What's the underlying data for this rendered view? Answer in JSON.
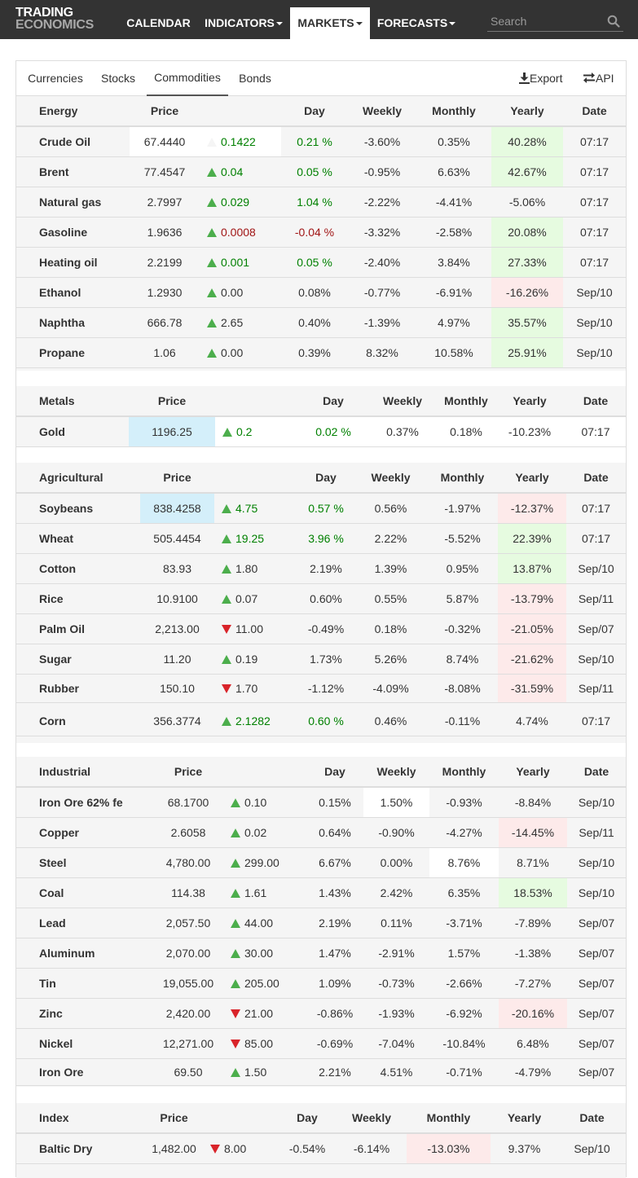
{
  "nav": {
    "logo_line1": "TRADING",
    "logo_line2": "ECONOMICS",
    "items": [
      {
        "label": "CALENDAR",
        "dropdown": false
      },
      {
        "label": "INDICATORS",
        "dropdown": true
      },
      {
        "label": "MARKETS",
        "dropdown": true
      },
      {
        "label": "FORECASTS",
        "dropdown": true
      }
    ],
    "search_placeholder": "Search"
  },
  "tabs": {
    "items": [
      "Currencies",
      "Stocks",
      "Commodities",
      "Bonds"
    ],
    "active": "Commodities",
    "export_label": "Export",
    "api_label": "API"
  },
  "colors": {
    "up": "#4cae4c",
    "down": "#d9242a",
    "pos_text": "#008000",
    "neg_text": "#a01515",
    "green_bg": "#e6fbe0",
    "red_bg": "#fdeaea",
    "highlight_bg": "#d4effa"
  },
  "sections": [
    {
      "name": "Energy",
      "columns": [
        "Price",
        "Day",
        "Weekly",
        "Monthly",
        "Yearly",
        "Date"
      ],
      "rows": [
        {
          "name": "Crude Oil",
          "price": "67.4440",
          "change": "0.1422",
          "dir": "flat",
          "change_color": "pos",
          "day": "0.21 %",
          "day_color": "pos",
          "weekly": "-3.60%",
          "monthly": "0.35%",
          "yearly": "40.28%",
          "date": "07:17"
        },
        {
          "name": "Brent",
          "price": "77.4547",
          "change": "0.04",
          "dir": "up",
          "change_color": "pos",
          "day": "0.05 %",
          "day_color": "pos",
          "weekly": "-0.95%",
          "monthly": "6.63%",
          "yearly": "42.67%",
          "date": "07:17"
        },
        {
          "name": "Natural gas",
          "price": "2.7997",
          "change": "0.029",
          "dir": "up",
          "change_color": "pos",
          "day": "1.04 %",
          "day_color": "pos",
          "weekly": "-2.22%",
          "monthly": "-4.41%",
          "yearly": "-5.06%",
          "date": "07:17"
        },
        {
          "name": "Gasoline",
          "price": "1.9636",
          "change": "0.0008",
          "dir": "up",
          "change_color": "neg",
          "day": "-0.04 %",
          "day_color": "neg",
          "weekly": "-3.32%",
          "monthly": "-2.58%",
          "yearly": "20.08%",
          "date": "07:17"
        },
        {
          "name": "Heating oil",
          "price": "2.2199",
          "change": "0.001",
          "dir": "up",
          "change_color": "pos",
          "day": "0.05 %",
          "day_color": "pos",
          "weekly": "-2.40%",
          "monthly": "3.84%",
          "yearly": "27.33%",
          "date": "07:17"
        },
        {
          "name": "Ethanol",
          "price": "1.2930",
          "change": "0.00",
          "dir": "up",
          "change_color": "",
          "day": "0.08%",
          "day_color": "",
          "weekly": "-0.77%",
          "monthly": "-6.91%",
          "yearly": "-16.26%",
          "date": "Sep/10"
        },
        {
          "name": "Naphtha",
          "price": "666.78",
          "change": "2.65",
          "dir": "up",
          "change_color": "",
          "day": "0.40%",
          "day_color": "",
          "weekly": "-1.39%",
          "monthly": "4.97%",
          "yearly": "35.57%",
          "date": "Sep/10"
        },
        {
          "name": "Propane",
          "price": "1.06",
          "change": "0.00",
          "dir": "up",
          "change_color": "",
          "day": "0.39%",
          "day_color": "",
          "weekly": "8.32%",
          "monthly": "10.58%",
          "yearly": "25.91%",
          "date": "Sep/10"
        }
      ]
    },
    {
      "name": "Metals",
      "columns": [
        "Price",
        "Day",
        "Weekly",
        "Monthly",
        "Yearly",
        "Date"
      ],
      "rows": [
        {
          "name": "Gold",
          "price": "1196.25",
          "change": "0.2",
          "dir": "up",
          "change_color": "pos",
          "day": "0.02 %",
          "day_color": "pos",
          "weekly": "0.37%",
          "monthly": "0.18%",
          "yearly": "-10.23%",
          "date": "07:17"
        }
      ]
    },
    {
      "name": "Agricultural",
      "columns": [
        "Price",
        "Day",
        "Weekly",
        "Monthly",
        "Yearly",
        "Date"
      ],
      "rows": [
        {
          "name": "Soybeans",
          "price": "838.4258",
          "change": "4.75",
          "dir": "up",
          "change_color": "pos",
          "day": "0.57 %",
          "day_color": "pos",
          "weekly": "0.56%",
          "monthly": "-1.97%",
          "yearly": "-12.37%",
          "date": "07:17"
        },
        {
          "name": "Wheat",
          "price": "505.4454",
          "change": "19.25",
          "dir": "up",
          "change_color": "pos",
          "day": "3.96 %",
          "day_color": "pos",
          "weekly": "2.22%",
          "monthly": "-5.52%",
          "yearly": "22.39%",
          "date": "07:17"
        },
        {
          "name": "Cotton",
          "price": "83.93",
          "change": "1.80",
          "dir": "up",
          "change_color": "",
          "day": "2.19%",
          "day_color": "",
          "weekly": "1.39%",
          "monthly": "0.95%",
          "yearly": "13.87%",
          "date": "Sep/10"
        },
        {
          "name": "Rice",
          "price": "10.9100",
          "change": "0.07",
          "dir": "up",
          "change_color": "",
          "day": "0.60%",
          "day_color": "",
          "weekly": "0.55%",
          "monthly": "5.87%",
          "yearly": "-13.79%",
          "date": "Sep/11"
        },
        {
          "name": "Palm Oil",
          "price": "2,213.00",
          "change": "11.00",
          "dir": "down",
          "change_color": "",
          "day": "-0.49%",
          "day_color": "",
          "weekly": "0.18%",
          "monthly": "-0.32%",
          "yearly": "-21.05%",
          "date": "Sep/07"
        },
        {
          "name": "Sugar",
          "price": "11.20",
          "change": "0.19",
          "dir": "up",
          "change_color": "",
          "day": "1.73%",
          "day_color": "",
          "weekly": "5.26%",
          "monthly": "8.74%",
          "yearly": "-21.62%",
          "date": "Sep/10"
        },
        {
          "name": "Rubber",
          "price": "150.10",
          "change": "1.70",
          "dir": "down",
          "change_color": "",
          "day": "-1.12%",
          "day_color": "",
          "weekly": "-4.09%",
          "monthly": "-8.08%",
          "yearly": "-31.59%",
          "date": "Sep/11"
        },
        {
          "name": "Corn",
          "price": "356.3774",
          "change": "2.1282",
          "dir": "up",
          "change_color": "pos",
          "day": "0.60 %",
          "day_color": "pos",
          "weekly": "0.46%",
          "monthly": "-0.11%",
          "yearly": "4.74%",
          "date": "07:17"
        }
      ]
    },
    {
      "name": "Industrial",
      "columns": [
        "Price",
        "Day",
        "Weekly",
        "Monthly",
        "Yearly",
        "Date"
      ],
      "rows": [
        {
          "name": "Iron Ore 62% fe",
          "price": "68.1700",
          "change": "0.10",
          "dir": "up",
          "change_color": "",
          "day": "0.15%",
          "day_color": "",
          "weekly": "1.50%",
          "monthly": "-0.93%",
          "yearly": "-8.84%",
          "date": "Sep/10"
        },
        {
          "name": "Copper",
          "price": "2.6058",
          "change": "0.02",
          "dir": "up",
          "change_color": "",
          "day": "0.64%",
          "day_color": "",
          "weekly": "-0.90%",
          "monthly": "-4.27%",
          "yearly": "-14.45%",
          "date": "Sep/11"
        },
        {
          "name": "Steel",
          "price": "4,780.00",
          "change": "299.00",
          "dir": "up",
          "change_color": "",
          "day": "6.67%",
          "day_color": "",
          "weekly": "0.00%",
          "monthly": "8.76%",
          "yearly": "8.71%",
          "date": "Sep/10"
        },
        {
          "name": "Coal",
          "price": "114.38",
          "change": "1.61",
          "dir": "up",
          "change_color": "",
          "day": "1.43%",
          "day_color": "",
          "weekly": "2.42%",
          "monthly": "6.35%",
          "yearly": "18.53%",
          "date": "Sep/10"
        },
        {
          "name": "Lead",
          "price": "2,057.50",
          "change": "44.00",
          "dir": "up",
          "change_color": "",
          "day": "2.19%",
          "day_color": "",
          "weekly": "0.11%",
          "monthly": "-3.71%",
          "yearly": "-7.89%",
          "date": "Sep/07"
        },
        {
          "name": "Aluminum",
          "price": "2,070.00",
          "change": "30.00",
          "dir": "up",
          "change_color": "",
          "day": "1.47%",
          "day_color": "",
          "weekly": "-2.91%",
          "monthly": "1.57%",
          "yearly": "-1.38%",
          "date": "Sep/07"
        },
        {
          "name": "Tin",
          "price": "19,055.00",
          "change": "205.00",
          "dir": "up",
          "change_color": "",
          "day": "1.09%",
          "day_color": "",
          "weekly": "-0.73%",
          "monthly": "-2.66%",
          "yearly": "-7.27%",
          "date": "Sep/07"
        },
        {
          "name": "Zinc",
          "price": "2,420.00",
          "change": "21.00",
          "dir": "down",
          "change_color": "",
          "day": "-0.86%",
          "day_color": "",
          "weekly": "-1.93%",
          "monthly": "-6.92%",
          "yearly": "-20.16%",
          "date": "Sep/07"
        },
        {
          "name": "Nickel",
          "price": "12,271.00",
          "change": "85.00",
          "dir": "down",
          "change_color": "",
          "day": "-0.69%",
          "day_color": "",
          "weekly": "-7.04%",
          "monthly": "-10.84%",
          "yearly": "6.48%",
          "date": "Sep/07"
        },
        {
          "name": "Iron Ore",
          "price": "69.50",
          "change": "1.50",
          "dir": "up",
          "change_color": "",
          "day": "2.21%",
          "day_color": "",
          "weekly": "4.51%",
          "monthly": "-0.71%",
          "yearly": "-4.79%",
          "date": "Sep/07"
        }
      ]
    },
    {
      "name": "Index",
      "columns": [
        "Price",
        "Day",
        "Weekly",
        "Monthly",
        "Yearly",
        "Date"
      ],
      "rows": [
        {
          "name": "Baltic Dry",
          "price": "1,482.00",
          "change": "8.00",
          "dir": "down",
          "change_color": "",
          "day": "-0.54%",
          "day_color": "",
          "weekly": "-6.14%",
          "monthly": "-13.03%",
          "yearly": "9.37%",
          "date": "Sep/10"
        }
      ]
    }
  ]
}
